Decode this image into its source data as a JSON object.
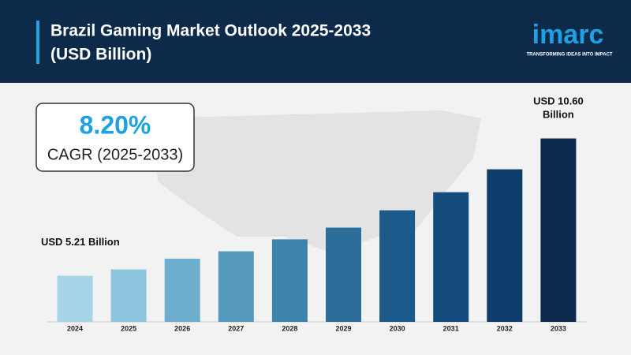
{
  "chart_data": {
    "type": "bar",
    "title": "Brazil Gaming Market Outlook 2025-2033",
    "subtitle": "(USD Billion)",
    "brand": "imarc",
    "brand_tagline": "TRANSFORMING IDEAS INTO IMPACT",
    "cagr_value": "8.20%",
    "cagr_label": "CAGR (2025-2033)",
    "categories": [
      "2024",
      "2025",
      "2026",
      "2027",
      "2028",
      "2029",
      "2030",
      "2031",
      "2032",
      "2033"
    ],
    "values": [
      5.21,
      5.46,
      5.88,
      6.17,
      6.64,
      7.1,
      7.78,
      8.49,
      9.39,
      10.6
    ],
    "value_labels": [
      "USD 5.21 Billion",
      null,
      null,
      null,
      null,
      null,
      null,
      null,
      null,
      "USD 10.60 Billion"
    ],
    "colors": [
      "#a8d4e8",
      "#8ec5df",
      "#6eaecd",
      "#5599bc",
      "#3d84ad",
      "#2d6d9a",
      "#1c5a8c",
      "#134b7d",
      "#0e3d6b",
      "#0b2a4d"
    ],
    "ylim": [
      3.4,
      11.7
    ]
  }
}
